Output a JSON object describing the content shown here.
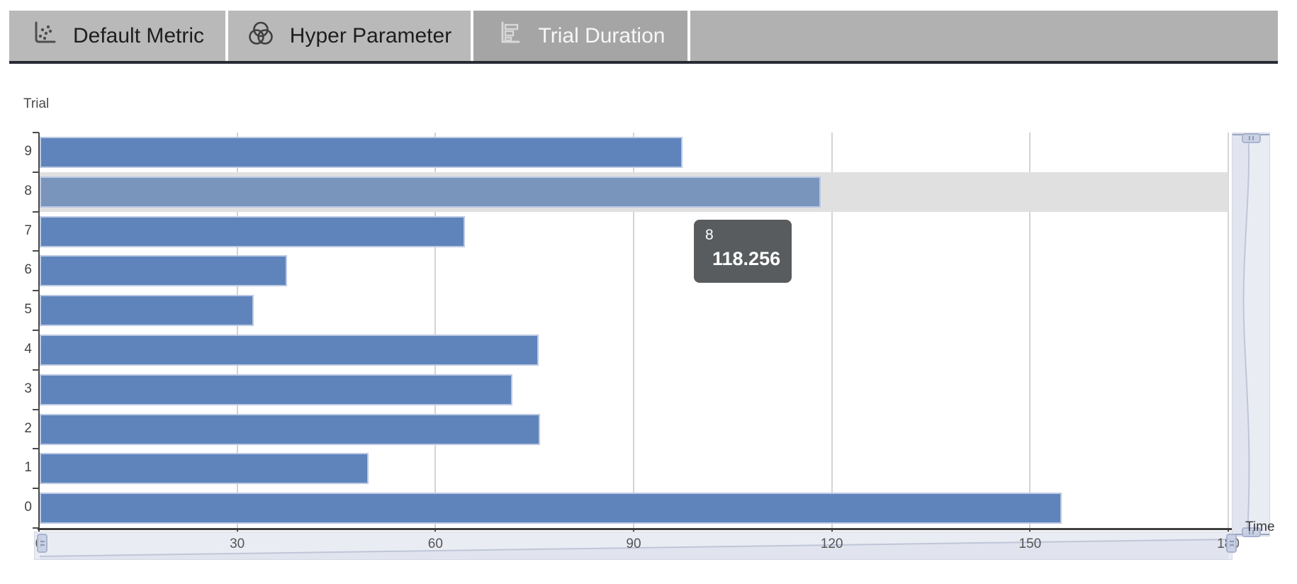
{
  "tabs": {
    "items": [
      {
        "label": "Default Metric",
        "icon": "scatter-chart-icon",
        "selected": false
      },
      {
        "label": "Hyper Parameter",
        "icon": "venn-circles-icon",
        "selected": false
      },
      {
        "label": "Trial Duration",
        "icon": "horizontal-bar-chart-icon",
        "selected": true
      }
    ]
  },
  "chart_data": {
    "type": "bar",
    "orientation": "horizontal",
    "ylabel": "Trial",
    "xlabel": "Time",
    "categories": [
      "0",
      "1",
      "2",
      "3",
      "4",
      "5",
      "6",
      "7",
      "8",
      "9"
    ],
    "values": [
      154.7,
      49.8,
      75.7,
      71.6,
      75.5,
      32.4,
      37.4,
      64.4,
      118.256,
      97.3
    ],
    "xlim": [
      0,
      180
    ],
    "xticks": [
      0,
      30,
      60,
      90,
      120,
      150,
      180
    ],
    "grid": true,
    "legend": "none",
    "category_order_top_to_bottom": [
      "9",
      "8",
      "7",
      "6",
      "5",
      "4",
      "3",
      "2",
      "1",
      "0"
    ],
    "highlighted_category": "8",
    "bar_color": "#5f84bc",
    "highlight_bar_color": "#7a95bb",
    "highlight_row_color": "#e0e0e0"
  },
  "tooltip": {
    "title": "8",
    "value": "118.256",
    "marker_color": "#5f84bc"
  }
}
